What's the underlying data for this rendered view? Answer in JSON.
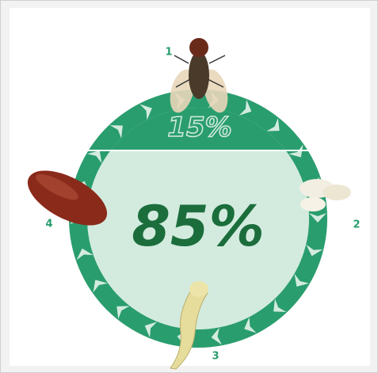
{
  "top_section": {
    "label": "15%"
  },
  "bottom_section": {
    "label": "85%"
  },
  "stages": [
    "1",
    "2",
    "3",
    "4"
  ]
}
